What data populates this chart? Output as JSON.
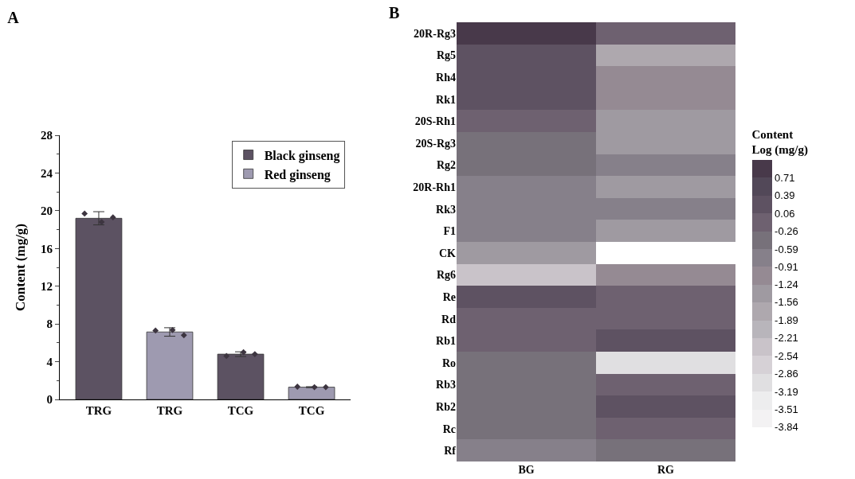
{
  "chart_data": [
    {
      "type": "bar",
      "title": "A",
      "categories": [
        "TRG",
        "TRG",
        "TCG",
        "TCG"
      ],
      "ylabel": "Content (mg/g)",
      "ylim": [
        0,
        28
      ],
      "yticks": [
        0,
        4,
        8,
        12,
        16,
        20,
        24,
        28
      ],
      "legend": "top right",
      "grid": false,
      "series": [
        {
          "name": "Black ginseng",
          "color": "#5c5262",
          "values": [
            19.2,
            null,
            4.8,
            null
          ],
          "errors": [
            [
              18.5,
              19.9
            ],
            null,
            [
              4.55,
              5.05
            ],
            null
          ]
        },
        {
          "name": "Red ginseng",
          "color": "#9e9ab0",
          "values": [
            null,
            7.15,
            null,
            1.3
          ],
          "errors": [
            null,
            [
              6.7,
              7.6
            ],
            null,
            [
              1.25,
              1.35
            ]
          ]
        },
        {
          "type": "scatter",
          "color": "#3d3540",
          "marker": "diamond",
          "values": [
            19.7,
            7.3,
            4.6,
            1.35
          ]
        },
        {
          "type": "scatter",
          "color": "#3d3540",
          "marker": "diamond",
          "values": [
            18.8,
            7.35,
            5.0,
            1.3
          ]
        },
        {
          "type": "scatter",
          "color": "#3d3540",
          "marker": "diamond",
          "values": [
            19.3,
            6.8,
            4.8,
            1.3
          ]
        }
      ]
    },
    {
      "type": "heatmap",
      "title": "B",
      "categories": [
        "BG",
        "RG"
      ],
      "y_categories": [
        "20R-Rg3",
        "Rg5",
        "Rh4",
        "Rk1",
        "20S-Rh1",
        "20S-Rg3",
        "Rg2",
        "20R-Rh1",
        "Rk3",
        "F1",
        "CK",
        "Rg6",
        "Re",
        "Rd",
        "Rb1",
        "Ro",
        "Rb3",
        "Rb2",
        "Rc",
        "Rf"
      ],
      "cells": [
        [
          0.85,
          -0.1
        ],
        [
          0.2,
          -1.75
        ],
        [
          0.2,
          -1.1
        ],
        [
          0.2,
          -1.1
        ],
        [
          -0.1,
          -1.4
        ],
        [
          -0.45,
          -1.4
        ],
        [
          -0.45,
          -0.75
        ],
        [
          -0.75,
          -1.4
        ],
        [
          -0.75,
          -0.75
        ],
        [
          -0.75,
          -1.4
        ],
        [
          -1.4,
          null
        ],
        [
          -2.4,
          -1.1
        ],
        [
          0.2,
          -0.1
        ],
        [
          -0.1,
          -0.1
        ],
        [
          -0.1,
          0.2
        ],
        [
          -0.45,
          -3.0
        ],
        [
          -0.45,
          -0.1
        ],
        [
          -0.45,
          0.2
        ],
        [
          -0.45,
          -0.1
        ],
        [
          -0.75,
          -0.45
        ]
      ],
      "clabel": "Content\nLog (mg/g)",
      "clim": [
        -3.84,
        1.04
      ],
      "cticks": [
        0.71,
        0.39,
        0.06,
        -0.26,
        -0.59,
        -0.91,
        -1.24,
        -1.56,
        -1.89,
        -2.21,
        -2.54,
        -2.86,
        -3.19,
        -3.51,
        -3.84
      ]
    }
  ]
}
